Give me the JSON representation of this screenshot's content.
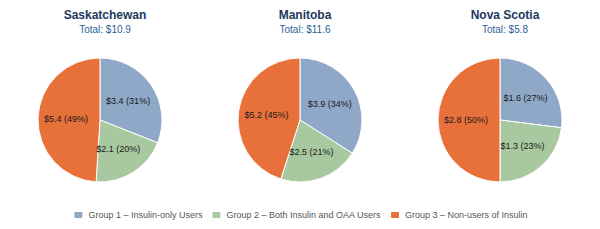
{
  "chart_data": [
    {
      "type": "pie",
      "title": "Saskatchewan",
      "subtitle": "Total: $10.9",
      "categories": [
        "Group 1 – Insulin-only Users",
        "Group 2 – Both Insulin and OAA Users",
        "Group 3 – Non-users of Insulin"
      ],
      "values": [
        31,
        20,
        49
      ],
      "value_labels": [
        "$3.4 (31%)",
        "$2.1 (20%)",
        "$5.4 (49%)"
      ],
      "colors": [
        "#8fa8c8",
        "#a8c8a0",
        "#e8703a"
      ],
      "legend": "bottom"
    },
    {
      "type": "pie",
      "title": "Manitoba",
      "subtitle": "Total: $11.6",
      "categories": [
        "Group 1 – Insulin-only Users",
        "Group 2 – Both Insulin and OAA Users",
        "Group 3 – Non-users of Insulin"
      ],
      "values": [
        34,
        21,
        45
      ],
      "value_labels": [
        "$3.9 (34%)",
        "$2.5 (21%)",
        "$5.2 (45%)"
      ],
      "colors": [
        "#8fa8c8",
        "#a8c8a0",
        "#e8703a"
      ],
      "legend": "bottom"
    },
    {
      "type": "pie",
      "title": "Nova Scotia",
      "subtitle": "Total: $5.8",
      "categories": [
        "Group 1 – Insulin-only Users",
        "Group 2 – Both Insulin and OAA Users",
        "Group 3 – Non-users of Insulin"
      ],
      "values": [
        27,
        23,
        50
      ],
      "value_labels": [
        "$1.6 (27%)",
        "$1.3 (23%)",
        "$2.8 (50%)"
      ],
      "colors": [
        "#8fa8c8",
        "#a8c8a0",
        "#e8703a"
      ],
      "legend": "bottom"
    }
  ]
}
